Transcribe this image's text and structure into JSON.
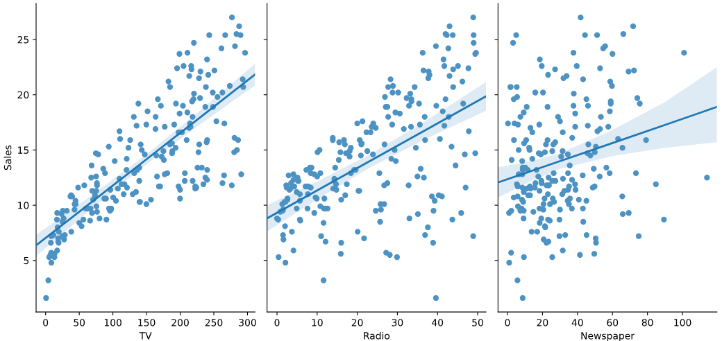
{
  "chart_data": [
    {
      "type": "scatter",
      "xlabel": "TV",
      "ylabel": "Sales",
      "xlim": [
        -14.1,
        311.2
      ],
      "ylim": [
        0.33,
        28.27
      ],
      "xticks": [
        0,
        50,
        100,
        150,
        200,
        250,
        300
      ],
      "yticks": [
        5,
        10,
        15,
        20,
        25
      ],
      "grid": false,
      "series": [
        {
          "marker": "circle",
          "color": "#4c92c3",
          "x": [
            230.1,
            44.5,
            17.2,
            151.5,
            180.8,
            8.7,
            57.5,
            120.2,
            8.6,
            199.8,
            66.1,
            214.7,
            23.8,
            97.5,
            204.1,
            195.4,
            67.8,
            281.4,
            69.2,
            147.3,
            218.4,
            237.4,
            13.2,
            228.3,
            62.3,
            262.9,
            142.9,
            240.1,
            248.8,
            70.6,
            292.9,
            112.9,
            97.2,
            265.6,
            95.7,
            290.7,
            266.9,
            74.7,
            43.1,
            228,
            202.5,
            177,
            293.6,
            206.9,
            25.1,
            175.1,
            89.7,
            239.9,
            227.2,
            66.9,
            199.8,
            100.4,
            216.4,
            182.6,
            262.7,
            198.9,
            7.3,
            136.2,
            210.8,
            210.7,
            53.5,
            261.3,
            239.3,
            102.7,
            131.1,
            69,
            31.5,
            139.3,
            237.4,
            216.8,
            199.1,
            109.8,
            26.8,
            129.4,
            213.4,
            16.9,
            27.5,
            120.5,
            5.4,
            116,
            76.4,
            239.8,
            75.3,
            68.4,
            213.5,
            193.2,
            76.3,
            110.7,
            88.3,
            109.8,
            134.3,
            28.6,
            217.7,
            250.9,
            107.4,
            163.3,
            197.6,
            184.9,
            289.7,
            135.2,
            222.4,
            296.4,
            280.2,
            187.9,
            238.2,
            137.9,
            25,
            90.4,
            13.1,
            255.4,
            225.8,
            241.7,
            175.7,
            209.6,
            78.2,
            75.1,
            139.2,
            76.4,
            125.7,
            19.4,
            141.3,
            18.8,
            224,
            123.1,
            229.5,
            87.2,
            7.8,
            80.2,
            220.3,
            59.6,
            0.7,
            265.2,
            8.4,
            219.8,
            36.9,
            48.3,
            25.6,
            273.7,
            43,
            184.9,
            73.4,
            193.7,
            220.5,
            104.6,
            96.2,
            140.3,
            240.1,
            243.2,
            38,
            44.7,
            280.7,
            121,
            197.6,
            171.3,
            187.8,
            4.1,
            93.9,
            149.8,
            11.7,
            131.7,
            172.5,
            85.7,
            188.4,
            163.5,
            117.2,
            234.5,
            17.9,
            206.8,
            215.4,
            284.3,
            50,
            164.5,
            19.6,
            168.4,
            222.4,
            276.9,
            248.4,
            170.2,
            276.7,
            165.6,
            156.6,
            218.5,
            56.2,
            287.6,
            253.8,
            205,
            139.5,
            191.1,
            286,
            18.7,
            39.5,
            75.5,
            17.2,
            166.8,
            149.7,
            38.2,
            94.2,
            177,
            283.6,
            232.1
          ],
          "values": [
            22.1,
            10.4,
            9.3,
            18.5,
            12.9,
            7.2,
            11.8,
            13.2,
            4.8,
            10.6,
            8.6,
            17.4,
            9.2,
            9.7,
            19,
            22.4,
            12.5,
            24.4,
            11.3,
            14.6,
            18,
            12.5,
            5.6,
            15.5,
            9.7,
            12,
            15,
            15.9,
            18.9,
            10.5,
            21.4,
            11.9,
            9.6,
            17.4,
            9.5,
            12.8,
            25.4,
            14.7,
            10.1,
            21.5,
            16.6,
            17.1,
            20.7,
            12.9,
            8.5,
            14.9,
            10.6,
            23.2,
            14.8,
            9.7,
            11.4,
            10.7,
            22.6,
            21.2,
            20.2,
            23.7,
            5.5,
            13.2,
            23.8,
            18.4,
            8.1,
            24.2,
            15.7,
            14,
            18,
            9.3,
            9.5,
            13.4,
            18.9,
            22.3,
            18.3,
            12.4,
            8.8,
            11,
            17,
            8.7,
            6.9,
            14.2,
            5.3,
            11,
            11.8,
            12.3,
            11.3,
            13.6,
            21.7,
            15.2,
            12,
            16,
            12.9,
            16.7,
            11.2,
            7.3,
            19.4,
            22.2,
            11.5,
            16.9,
            11.7,
            15.5,
            25.4,
            17.2,
            11.7,
            23.8,
            14.8,
            14.7,
            20.7,
            19.2,
            7.2,
            8.7,
            5.3,
            19.8,
            13.4,
            21.8,
            14.1,
            15.9,
            14.6,
            12.6,
            12.2,
            9.4,
            15.9,
            6.6,
            15.5,
            7,
            11.6,
            15.2,
            19.7,
            10.6,
            6.6,
            8.8,
            24.7,
            9.7,
            1.6,
            12.7,
            5.7,
            19.6,
            10.8,
            11.6,
            9.5,
            20.8,
            9.6,
            20.7,
            10.9,
            19.2,
            20.1,
            10.4,
            11.4,
            10.3,
            13.2,
            25.4,
            10.9,
            10.1,
            16.1,
            11.6,
            16.6,
            19,
            15.6,
            3.2,
            15.3,
            10.1,
            7.3,
            12.9,
            14.4,
            13.3,
            14.9,
            18,
            11.9,
            11.9,
            8,
            12.2,
            17.1,
            15,
            8.4,
            14.5,
            7.6,
            11.7,
            11.5,
            27,
            20.2,
            11.7,
            11.8,
            12.6,
            10.5,
            12.2,
            8.7,
            26.2,
            17.6,
            22.6,
            10.3,
            17.3,
            15.9,
            6.7,
            10.8,
            9.9,
            5.9,
            19.6,
            17.3,
            7.6,
            9.7,
            12.8,
            25.5,
            13.4
          ]
        },
        {
          "type": "line",
          "color": "#1f77b4",
          "x": [
            -14.1,
            67.04,
            147.04,
            227.04,
            311.2
          ],
          "values": [
            6.36,
            10.22,
            14.02,
            17.83,
            21.83
          ],
          "lower": [
            5.39,
            9.6,
            13.57,
            17.21,
            20.85
          ],
          "upper": [
            7.33,
            10.84,
            14.47,
            18.45,
            22.81
          ]
        }
      ]
    },
    {
      "type": "scatter",
      "xlabel": "Radio",
      "xlim": [
        -2.48,
        52.08
      ],
      "ylim": [
        0.33,
        28.27
      ],
      "xticks": [
        0,
        10,
        20,
        30,
        40,
        50
      ],
      "yticks": [
        5,
        10,
        15,
        20,
        25
      ],
      "grid": false,
      "tick_labels": "x",
      "series": [
        {
          "marker": "circle",
          "color": "#4c92c3",
          "x": [
            37.8,
            39.3,
            45.9,
            41.3,
            10.8,
            48.9,
            32.8,
            19.6,
            2.1,
            2.6,
            5.8,
            24,
            35.1,
            7.6,
            32.9,
            47.7,
            36.6,
            39.6,
            20.5,
            23.9,
            27.7,
            5.1,
            15.9,
            16.9,
            12.6,
            3.5,
            29.3,
            16.7,
            27.1,
            16,
            28.3,
            17.4,
            1.5,
            20,
            1.4,
            4.1,
            43.8,
            49.4,
            26.7,
            37.7,
            22.3,
            33.4,
            27.7,
            8.4,
            25.7,
            22.5,
            9.9,
            41.5,
            15.8,
            11.7,
            3.1,
            9.6,
            41.7,
            46.2,
            28.8,
            49.4,
            28.1,
            19.2,
            49.6,
            29.5,
            2,
            42.7,
            15.5,
            29.6,
            42.8,
            9.3,
            24.6,
            14.5,
            27.5,
            43.9,
            30.6,
            14.3,
            33,
            5.7,
            24.6,
            43.7,
            1.6,
            28.5,
            29.9,
            7.7,
            26.7,
            4.1,
            20.3,
            44.5,
            43,
            18.4,
            27.5,
            40.6,
            25.5,
            47.8,
            4.9,
            1.5,
            33.5,
            36.5,
            14,
            31.6,
            null,
            21,
            42.3,
            41.7,
            4.3,
            36.3,
            10.1,
            17.2,
            34.3,
            46.4,
            11,
            0.3,
            0.4,
            26.9,
            8.2,
            38,
            15.4,
            20.6,
            46.8,
            35,
            14.3,
            0.8,
            36.9,
            16,
            26.8,
            21.7,
            2.4,
            34.6,
            32.3,
            11.8,
            38.9,
            0,
            49,
            12,
            39.6,
            2.9,
            27.2,
            33.5,
            38.6,
            47,
            39,
            28.9,
            25.9,
            43.9,
            17,
            35.4,
            33.2,
            5.7,
            14.8,
            1.9,
            7.3,
            49,
            40.3,
            25.8,
            13.9,
            8.4,
            23.3,
            39.7,
            21.1,
            11.6,
            43.5,
            1.3,
            36.9,
            18.4,
            18.1,
            35.8,
            18.1,
            36.8,
            14.7,
            null,
            37.6,
            5.2,
            23.6,
            10.6,
            11.6,
            20.9,
            20.1,
            7.1,
            3.4,
            48.9,
            30.2,
            7.8,
            2.3,
            10,
            2.6,
            5.4,
            5.7,
            43,
            21.3,
            45.1,
            2.1,
            28.7,
            13.9,
            12.1,
            41.1,
            10.8,
            4.1,
            42,
            35.6,
            3.7,
            4.9,
            9.3,
            42,
            8.6
          ],
          "values": [
            22.1,
            10.4,
            9.3,
            18.5,
            12.9,
            7.2,
            11.8,
            13.2,
            4.8,
            10.6,
            8.6,
            17.4,
            9.2,
            9.7,
            19,
            22.4,
            12.5,
            24.4,
            11.3,
            14.6,
            18,
            12.5,
            5.6,
            15.5,
            9.7,
            12,
            15,
            15.9,
            18.9,
            10.5,
            21.4,
            11.9,
            9.6,
            17.4,
            9.5,
            12.8,
            25.4,
            14.7,
            10.1,
            21.5,
            16.6,
            17.1,
            20.7,
            12.9,
            8.5,
            14.9,
            10.6,
            23.2,
            14.8,
            9.7,
            11.4,
            10.7,
            22.6,
            21.2,
            20.2,
            23.7,
            5.5,
            13.2,
            23.8,
            18.4,
            8.1,
            24.2,
            15.7,
            14,
            18,
            9.3,
            9.5,
            13.4,
            18.9,
            22.3,
            18.3,
            12.4,
            8.8,
            11,
            17,
            8.7,
            6.9,
            14.2,
            5.3,
            11,
            11.8,
            12.3,
            11.3,
            13.6,
            21.7,
            15.2,
            12,
            16,
            12.9,
            16.7,
            11.2,
            7.3,
            19.4,
            22.2,
            11.5,
            16.9,
            null,
            15.5,
            25.4,
            17.2,
            11.7,
            23.8,
            14.8,
            14.7,
            20.7,
            19.2,
            7.2,
            8.7,
            5.3,
            19.8,
            13.4,
            21.8,
            14.1,
            15.9,
            14.6,
            12.6,
            12.2,
            9.4,
            15.9,
            6.6,
            15.5,
            7,
            11.6,
            15.2,
            19.7,
            10.6,
            6.6,
            8.8,
            24.7,
            9.7,
            1.6,
            12.7,
            5.7,
            19.6,
            10.8,
            11.6,
            9.5,
            20.8,
            9.6,
            20.7,
            10.9,
            19.2,
            20.1,
            10.4,
            11.4,
            10.3,
            13.2,
            25.4,
            10.9,
            10.1,
            16.1,
            11.6,
            16.6,
            19,
            15.6,
            3.2,
            15.3,
            10.1,
            7.3,
            12.9,
            14.4,
            13.3,
            14.9,
            18,
            11.9,
            null,
            8,
            12.2,
            17.1,
            15,
            8.4,
            14.5,
            7.6,
            11.7,
            11.5,
            27,
            20.2,
            11.7,
            11.8,
            12.6,
            10.5,
            12.2,
            8.7,
            26.2,
            17.6,
            22.6,
            10.3,
            17.3,
            15.9,
            6.7,
            10.8,
            9.9,
            5.9,
            19.6,
            17.3,
            7.6,
            9.7,
            12.8,
            25.5,
            13.4
          ]
        },
        {
          "type": "line",
          "color": "#1f77b4",
          "x": [
            -2.48,
            10,
            23.26,
            37,
            52.08
          ],
          "values": [
            8.81,
            11.34,
            14.02,
            16.8,
            19.86
          ],
          "lower": [
            7.62,
            10.54,
            13.43,
            15.99,
            18.56
          ],
          "upper": [
            10.0,
            12.14,
            14.62,
            17.61,
            21.16
          ]
        }
      ]
    },
    {
      "type": "scatter",
      "xlabel": "Newspaper",
      "xlim": [
        -5.39,
        119.69
      ],
      "ylim": [
        0.33,
        28.27
      ],
      "xticks": [
        0,
        20,
        40,
        60,
        80,
        100
      ],
      "yticks": [
        5,
        10,
        15,
        20,
        25
      ],
      "grid": false,
      "tick_labels": "x",
      "series": [
        {
          "marker": "circle",
          "color": "#4c92c3",
          "x": [
            69.2,
            45.1,
            69.3,
            58.5,
            58.4,
            75,
            23.5,
            11.6,
            1,
            21.2,
            24.2,
            4,
            65.9,
            7.2,
            46,
            52.9,
            114,
            55.8,
            18.3,
            19.1,
            53.4,
            23.5,
            49.6,
            26.2,
            18.3,
            19.5,
            12.6,
            22.9,
            22.9,
            40.8,
            43.2,
            38.6,
            30,
            0.3,
            7.4,
            8.5,
            5,
            45.7,
            35.1,
            32,
            31.6,
            38.7,
            1.8,
            26.4,
            43.3,
            31.5,
            35.7,
            18.5,
            49.9,
            36.8,
            34.6,
            3.6,
            39.6,
            58.7,
            15.9,
            60,
            41.4,
            16.6,
            37.7,
            9.3,
            21.4,
            54.7,
            27.3,
            8.4,
            28.9,
            0.9,
            2.2,
            10.2,
            11,
            27.2,
            38.7,
            31.7,
            19.3,
            31.3,
            13.1,
            89.4,
            20.7,
            14.2,
            9.4,
            23.1,
            22.3,
            36.9,
            32.5,
            35.6,
            33.8,
            65.7,
            16,
            63.2,
            73.4,
            51.4,
            9.3,
            33,
            59,
            72.3,
            10.9,
            52.9,
            5.9,
            22,
            51.2,
            45.9,
            49.8,
            100.9,
            21.4,
            17.9,
            5.3,
            59,
            29.7,
            23.2,
            25.6,
            5.5,
            56.5,
            23.2,
            2.4,
            10.7,
            34.5,
            52.7,
            25.6,
            14.8,
            79.2,
            22.3,
            46.2,
            50.4,
            15.6,
            12.4,
            74.2,
            25.9,
            50.6,
            9.2,
            3.2,
            43.1,
            8.7,
            43,
            2.1,
            45.1,
            65.6,
            8.5,
            9.3,
            59.7,
            20.5,
            1.7,
            12.9,
            75.6,
            37.9,
            34.4,
            38.9,
            9,
            8.7,
            44.3,
            11.9,
            20.6,
            37,
            48.7,
            14.2,
            37.7,
            9.5,
            5.7,
            50.5,
            24.3,
            45.2,
            34.6,
            30.7,
            49.3,
            25.6,
            7.4,
            5.4,
            84.8,
            21.6,
            19.4,
            57.6,
            6.4,
            18.4,
            47.4,
            17,
            12.8,
            13.1,
            41.8,
            20.3,
            35.2,
            23.7,
            17.6,
            8.3,
            27.4,
            29.7,
            71.8,
            30,
            19.6,
            26.6,
            18.2,
            3.7,
            23.4,
            5.8,
            6,
            31.6,
            3.6,
            6,
            13.8,
            8.1,
            6.4,
            66.2,
            8.7
          ],
          "values": [
            22.1,
            10.4,
            9.3,
            18.5,
            12.9,
            7.2,
            11.8,
            13.2,
            4.8,
            10.6,
            8.6,
            17.4,
            9.2,
            9.7,
            19,
            22.4,
            12.5,
            24.4,
            11.3,
            14.6,
            18,
            12.5,
            5.6,
            15.5,
            9.7,
            12,
            15,
            15.9,
            18.9,
            10.5,
            21.4,
            11.9,
            9.6,
            17.4,
            9.5,
            12.8,
            25.4,
            14.7,
            10.1,
            21.5,
            16.6,
            17.1,
            20.7,
            12.9,
            8.5,
            14.9,
            10.6,
            23.2,
            14.8,
            9.7,
            11.4,
            10.7,
            22.6,
            21.2,
            20.2,
            23.7,
            5.5,
            13.2,
            23.8,
            18.4,
            8.1,
            24.2,
            15.7,
            14,
            18,
            9.3,
            9.5,
            13.4,
            18.9,
            22.3,
            18.3,
            12.4,
            8.8,
            11,
            17,
            8.7,
            6.9,
            14.2,
            5.3,
            11,
            11.8,
            12.3,
            11.3,
            13.6,
            21.7,
            15.2,
            12,
            16,
            12.9,
            16.7,
            11.2,
            7.3,
            19.4,
            22.2,
            11.5,
            16.9,
            11.7,
            15.5,
            25.4,
            17.2,
            11.7,
            23.8,
            14.8,
            14.7,
            20.7,
            19.2,
            7.2,
            8.7,
            5.3,
            19.8,
            13.4,
            21.8,
            14.1,
            15.9,
            14.6,
            12.6,
            12.2,
            9.4,
            15.9,
            6.6,
            15.5,
            7,
            11.6,
            15.2,
            19.7,
            10.6,
            6.6,
            8.8,
            24.7,
            9.7,
            1.6,
            12.7,
            5.7,
            19.6,
            10.8,
            11.6,
            9.5,
            20.8,
            9.6,
            20.7,
            10.9,
            19.2,
            20.1,
            10.4,
            11.4,
            10.3,
            13.2,
            25.4,
            10.9,
            10.1,
            16.1,
            11.6,
            16.6,
            19,
            15.6,
            3.2,
            15.3,
            10.1,
            7.3,
            12.9,
            14.4,
            13.3,
            14.9,
            18,
            11.9,
            11.9,
            8,
            12.2,
            17.1,
            15,
            8.4,
            14.5,
            7.6,
            11.7,
            11.5,
            27,
            20.2,
            11.7,
            11.8,
            12.6,
            10.5,
            12.2,
            8.7,
            26.2,
            17.6,
            22.6,
            10.3,
            17.3,
            15.9,
            6.7,
            10.8,
            9.9,
            5.9,
            19.6,
            17.3,
            7.6,
            9.7,
            12.8,
            25.5,
            13.4
          ]
        },
        {
          "type": "line",
          "color": "#1f77b4",
          "x": [
            -5.39,
            15,
            30.55,
            60,
            90,
            119.69
          ],
          "values": [
            12.06,
            13.17,
            14.02,
            15.63,
            17.27,
            18.9
          ],
          "lower": [
            10.69,
            12.3,
            13.31,
            14.44,
            15.2,
            15.7
          ],
          "upper": [
            13.43,
            14.04,
            14.73,
            16.82,
            19.34,
            22.5
          ]
        }
      ]
    }
  ]
}
